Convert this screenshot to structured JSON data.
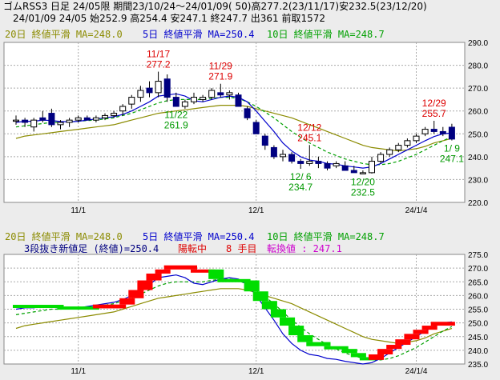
{
  "header": {
    "line1": "ゴムRSS3 日足 24/05限 期間23/10/24～24/01/09( 50)高277.2(23/11/17)安232.5(23/12/20)",
    "line2": "24/01/09 24/05 始252.9 高254.4 安247.1 終247.7 出361 前取1572"
  },
  "colors": {
    "ma20": "#8b8b00",
    "ma5": "#0000cc",
    "ma10": "#00a000",
    "candle": "#000080",
    "up_brick": "#ff0000",
    "down_brick": "#00dd00",
    "high_ann": "#dd0000",
    "low_ann": "#009900",
    "purple": "#cc00cc"
  },
  "top_legend": {
    "ma20": "20日 終値平滑 MA=248.0",
    "ma5": "5日 終値平滑 MA=250.4",
    "ma10": "10日 終値平滑 MA=248.7"
  },
  "bottom_legend": {
    "ma20": "20日 終値平滑 MA=248.0",
    "ma5": "5日 終値平滑 MA=250.4",
    "ma10": "10日 終値平滑 MA=248.7",
    "line2_a": "3段抜き新値足 (終値)=250.4",
    "line2_b": "陽転中",
    "line2_c": "8 手目",
    "line2_d": "転換値 : 247.1"
  },
  "chart_data": [
    {
      "type": "candlestick",
      "ylim": [
        220,
        290
      ],
      "yticks": [
        "220.0",
        "230.0",
        "240.0",
        "250.0",
        "260.0",
        "270.0",
        "280.0",
        "290.0"
      ],
      "xlabels": [
        {
          "index": 7,
          "label": "11/1"
        },
        {
          "index": 27,
          "label": "12/1"
        },
        {
          "index": 45,
          "label": "24/1/4"
        }
      ],
      "candles": [
        {
          "o": 256,
          "h": 258,
          "l": 254,
          "c": 256
        },
        {
          "o": 256,
          "h": 257,
          "l": 253,
          "c": 255
        },
        {
          "o": 253,
          "h": 257,
          "l": 251,
          "c": 256
        },
        {
          "o": 257,
          "h": 260,
          "l": 255,
          "c": 256
        },
        {
          "o": 259,
          "h": 261,
          "l": 253,
          "c": 254
        },
        {
          "o": 254,
          "h": 256,
          "l": 252,
          "c": 255
        },
        {
          "o": 255,
          "h": 257,
          "l": 253,
          "c": 256
        },
        {
          "o": 256,
          "h": 258,
          "l": 255,
          "c": 257
        },
        {
          "o": 257,
          "h": 258,
          "l": 256,
          "c": 256
        },
        {
          "o": 256,
          "h": 258,
          "l": 255,
          "c": 257
        },
        {
          "o": 257,
          "h": 259,
          "l": 256,
          "c": 258
        },
        {
          "o": 258,
          "h": 260,
          "l": 257,
          "c": 259
        },
        {
          "o": 260,
          "h": 263,
          "l": 258,
          "c": 262
        },
        {
          "o": 263,
          "h": 267,
          "l": 261,
          "c": 266
        },
        {
          "o": 266,
          "h": 271,
          "l": 264,
          "c": 269
        },
        {
          "o": 270,
          "h": 273,
          "l": 266,
          "c": 268
        },
        {
          "o": 268,
          "h": 277.2,
          "l": 266,
          "c": 273
        },
        {
          "o": 274,
          "h": 276,
          "l": 264,
          "c": 266
        },
        {
          "o": 266,
          "h": 268,
          "l": 261.9,
          "c": 262
        },
        {
          "o": 262,
          "h": 265,
          "l": 261,
          "c": 264
        },
        {
          "o": 264,
          "h": 268,
          "l": 263,
          "c": 266
        },
        {
          "o": 265,
          "h": 267,
          "l": 264,
          "c": 266
        },
        {
          "o": 266,
          "h": 270,
          "l": 265,
          "c": 269
        },
        {
          "o": 268,
          "h": 271.9,
          "l": 266,
          "c": 267
        },
        {
          "o": 267,
          "h": 269,
          "l": 265,
          "c": 268
        },
        {
          "o": 267,
          "h": 268,
          "l": 262,
          "c": 262
        },
        {
          "o": 261,
          "h": 262,
          "l": 256,
          "c": 257
        },
        {
          "o": 255,
          "h": 256,
          "l": 250,
          "c": 250
        },
        {
          "o": 249,
          "h": 250,
          "l": 243,
          "c": 245
        },
        {
          "o": 244,
          "h": 245,
          "l": 239,
          "c": 240
        },
        {
          "o": 240,
          "h": 243,
          "l": 238,
          "c": 241
        },
        {
          "o": 241,
          "h": 242,
          "l": 237,
          "c": 238
        },
        {
          "o": 238,
          "h": 239,
          "l": 234.7,
          "c": 237
        },
        {
          "o": 237,
          "h": 245.1,
          "l": 236,
          "c": 238
        },
        {
          "o": 238,
          "h": 240,
          "l": 235,
          "c": 237
        },
        {
          "o": 237,
          "h": 238,
          "l": 234,
          "c": 235
        },
        {
          "o": 236,
          "h": 238,
          "l": 235,
          "c": 237
        },
        {
          "o": 236,
          "h": 238,
          "l": 234,
          "c": 234
        },
        {
          "o": 234,
          "h": 236,
          "l": 233,
          "c": 233
        },
        {
          "o": 233,
          "h": 234,
          "l": 232.5,
          "c": 233
        },
        {
          "o": 233,
          "h": 240,
          "l": 232.6,
          "c": 238
        },
        {
          "o": 238,
          "h": 242,
          "l": 237,
          "c": 241
        },
        {
          "o": 241,
          "h": 244,
          "l": 240,
          "c": 243
        },
        {
          "o": 243,
          "h": 246,
          "l": 242,
          "c": 245
        },
        {
          "o": 245,
          "h": 248,
          "l": 244,
          "c": 247
        },
        {
          "o": 247,
          "h": 250,
          "l": 246,
          "c": 249
        },
        {
          "o": 250,
          "h": 253,
          "l": 249,
          "c": 252
        },
        {
          "o": 252,
          "h": 255.7,
          "l": 250,
          "c": 251
        },
        {
          "o": 251,
          "h": 253,
          "l": 249,
          "c": 250
        },
        {
          "o": 252.9,
          "h": 254.4,
          "l": 247.1,
          "c": 247.7
        }
      ],
      "ma20": [
        248,
        249,
        249.5,
        250,
        250.5,
        251,
        251.5,
        252,
        252.5,
        253,
        253.5,
        254,
        255,
        256,
        257,
        258,
        259,
        259.5,
        260,
        260.5,
        261,
        261.5,
        262,
        262.5,
        262.5,
        262.5,
        262,
        261,
        260,
        259,
        258,
        257,
        255.5,
        254,
        252.5,
        251,
        249.5,
        248,
        246.5,
        245,
        244,
        243.5,
        243,
        242.5,
        243,
        243.5,
        244.5,
        246,
        247,
        248
      ],
      "ma5": [
        255,
        255.5,
        255.5,
        256,
        255.8,
        255.4,
        255.2,
        255.5,
        256,
        256.5,
        257,
        257.5,
        258.5,
        260,
        262,
        264,
        266.5,
        267,
        267.5,
        266.5,
        264.5,
        264,
        265,
        266,
        266.5,
        266,
        264,
        260,
        255.5,
        251,
        246,
        242.5,
        240,
        238.5,
        238,
        237,
        236.7,
        236,
        235.5,
        235,
        235.5,
        237,
        239,
        241,
        243,
        245,
        247,
        248.8,
        250,
        250.4
      ],
      "ma10": [
        253,
        253.5,
        254,
        254.5,
        255,
        255,
        255.2,
        255.5,
        255.8,
        256,
        256.5,
        257,
        258,
        259,
        260.5,
        262,
        263.5,
        264.5,
        265,
        265,
        265,
        265,
        265.5,
        266,
        266,
        265.5,
        264,
        262,
        259.5,
        257,
        254,
        251,
        248.5,
        246,
        244,
        242,
        240.5,
        239,
        238,
        237,
        236.5,
        236.5,
        237,
        238,
        239.5,
        241,
        243,
        245,
        247,
        248.7
      ],
      "highs": [
        {
          "index": 16,
          "date": "11/17",
          "value": "277.2"
        },
        {
          "index": 23,
          "date": "11/29",
          "value": "271.9"
        },
        {
          "index": 33,
          "date": "12/12",
          "value": "245.1"
        },
        {
          "index": 47,
          "date": "12/29",
          "value": "255.7"
        }
      ],
      "lows": [
        {
          "index": 18,
          "date": "11/22",
          "value": "261.9"
        },
        {
          "index": 32,
          "date": "12/ 6",
          "value": "234.7"
        },
        {
          "index": 39,
          "date": "12/20",
          "value": "232.5"
        },
        {
          "index": 49,
          "date": "1/ 9",
          "value": "247.1"
        }
      ]
    },
    {
      "type": "line-break",
      "ylim": [
        235,
        275
      ],
      "yticks": [
        "235.0",
        "240.0",
        "245.0",
        "250.0",
        "255.0",
        "260.0",
        "265.0",
        "270.0",
        "275.0"
      ],
      "xlabels": [
        {
          "index": 7,
          "label": "11/1"
        },
        {
          "index": 27,
          "label": "12/1"
        },
        {
          "index": 45,
          "label": "24/1/4"
        }
      ],
      "bricks": [
        {
          "i0": 0,
          "i1": 5,
          "low": 256,
          "high": 256.6,
          "dir": "down"
        },
        {
          "i0": 5,
          "i1": 9,
          "low": 255.3,
          "high": 256,
          "dir": "down"
        },
        {
          "i0": 9,
          "i1": 12,
          "low": 255.3,
          "high": 256.7,
          "dir": "up"
        },
        {
          "i0": 12,
          "i1": 13,
          "low": 256.7,
          "high": 259,
          "dir": "up"
        },
        {
          "i0": 13,
          "i1": 14,
          "low": 259,
          "high": 262,
          "dir": "up"
        },
        {
          "i0": 14,
          "i1": 15,
          "low": 262,
          "high": 265.5,
          "dir": "up"
        },
        {
          "i0": 15,
          "i1": 16,
          "low": 265.5,
          "high": 268,
          "dir": "up"
        },
        {
          "i0": 16,
          "i1": 17,
          "low": 268,
          "high": 269.5,
          "dir": "up"
        },
        {
          "i0": 17,
          "i1": 20,
          "low": 269.5,
          "high": 271,
          "dir": "up"
        },
        {
          "i0": 20,
          "i1": 22,
          "low": 268.5,
          "high": 269.5,
          "dir": "up"
        },
        {
          "i0": 22,
          "i1": 23,
          "low": 266,
          "high": 269.5,
          "dir": "down"
        },
        {
          "i0": 23,
          "i1": 26,
          "low": 265.5,
          "high": 266,
          "dir": "down"
        },
        {
          "i0": 26,
          "i1": 27,
          "low": 261.5,
          "high": 265.5,
          "dir": "down"
        },
        {
          "i0": 27,
          "i1": 28,
          "low": 258,
          "high": 261.5,
          "dir": "down"
        },
        {
          "i0": 28,
          "i1": 29,
          "low": 255,
          "high": 258,
          "dir": "down"
        },
        {
          "i0": 29,
          "i1": 30,
          "low": 252,
          "high": 255,
          "dir": "down"
        },
        {
          "i0": 30,
          "i1": 31,
          "low": 249,
          "high": 252,
          "dir": "down"
        },
        {
          "i0": 31,
          "i1": 32,
          "low": 245.5,
          "high": 249,
          "dir": "down"
        },
        {
          "i0": 32,
          "i1": 33,
          "low": 243,
          "high": 245.5,
          "dir": "down"
        },
        {
          "i0": 33,
          "i1": 35,
          "low": 241.5,
          "high": 243,
          "dir": "down"
        },
        {
          "i0": 35,
          "i1": 37,
          "low": 240.5,
          "high": 241.5,
          "dir": "down"
        },
        {
          "i0": 37,
          "i1": 38,
          "low": 239,
          "high": 240.5,
          "dir": "down"
        },
        {
          "i0": 38,
          "i1": 39,
          "low": 237.5,
          "high": 239,
          "dir": "down"
        },
        {
          "i0": 39,
          "i1": 40,
          "low": 236.5,
          "high": 237.5,
          "dir": "down"
        },
        {
          "i0": 40,
          "i1": 41,
          "low": 236.5,
          "high": 238.5,
          "dir": "up"
        },
        {
          "i0": 41,
          "i1": 42,
          "low": 238.5,
          "high": 240.5,
          "dir": "up"
        },
        {
          "i0": 42,
          "i1": 43,
          "low": 240.5,
          "high": 242,
          "dir": "up"
        },
        {
          "i0": 43,
          "i1": 44,
          "low": 242,
          "high": 244,
          "dir": "up"
        },
        {
          "i0": 44,
          "i1": 45,
          "low": 244,
          "high": 246,
          "dir": "up"
        },
        {
          "i0": 45,
          "i1": 46,
          "low": 246,
          "high": 247.5,
          "dir": "up"
        },
        {
          "i0": 46,
          "i1": 47,
          "low": 247.5,
          "high": 249,
          "dir": "up"
        },
        {
          "i0": 47,
          "i1": 49,
          "low": 249,
          "high": 250.4,
          "dir": "up"
        }
      ]
    }
  ]
}
